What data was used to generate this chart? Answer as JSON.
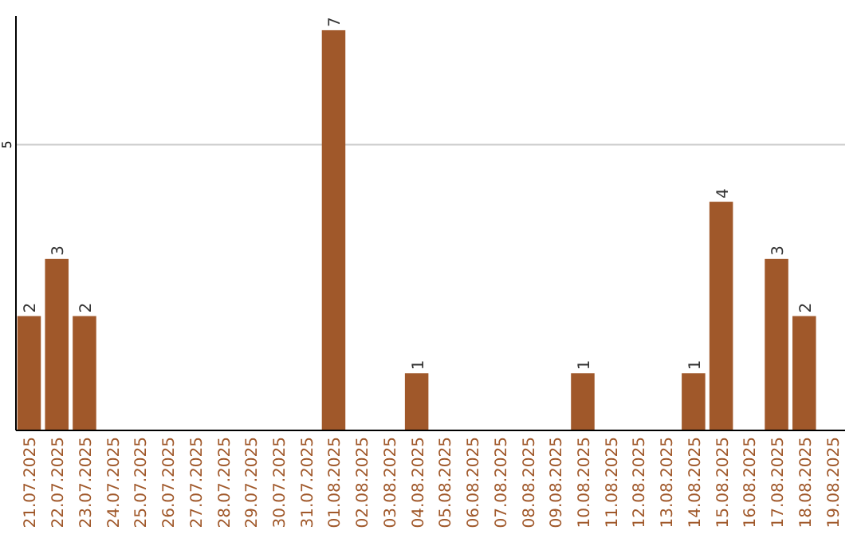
{
  "chart_data": {
    "type": "bar",
    "categories": [
      "21.07.2025",
      "22.07.2025",
      "23.07.2025",
      "24.07.2025",
      "25.07.2025",
      "26.07.2025",
      "27.07.2025",
      "28.07.2025",
      "29.07.2025",
      "30.07.2025",
      "31.07.2025",
      "01.08.2025",
      "02.08.2025",
      "03.08.2025",
      "04.08.2025",
      "05.08.2025",
      "06.08.2025",
      "07.08.2025",
      "08.08.2025",
      "09.08.2025",
      "10.08.2025",
      "11.08.2025",
      "12.08.2025",
      "13.08.2025",
      "14.08.2025",
      "15.08.2025",
      "16.08.2025",
      "17.08.2025",
      "18.08.2025",
      "19.08.2025"
    ],
    "values": [
      2,
      3,
      2,
      0,
      0,
      0,
      0,
      0,
      0,
      0,
      0,
      7,
      0,
      0,
      1,
      0,
      0,
      0,
      0,
      0,
      1,
      0,
      0,
      0,
      1,
      4,
      0,
      3,
      2,
      0
    ],
    "value_labels": [
      "2",
      "3",
      "2",
      null,
      null,
      null,
      null,
      null,
      null,
      null,
      null,
      "7",
      null,
      null,
      "1",
      null,
      null,
      null,
      null,
      null,
      "1",
      null,
      null,
      null,
      "1",
      "4",
      null,
      "3",
      "2",
      null
    ],
    "color": "#a0582a",
    "ylim": [
      0,
      7.25
    ],
    "yticks": [
      5
    ],
    "grid": "y"
  }
}
